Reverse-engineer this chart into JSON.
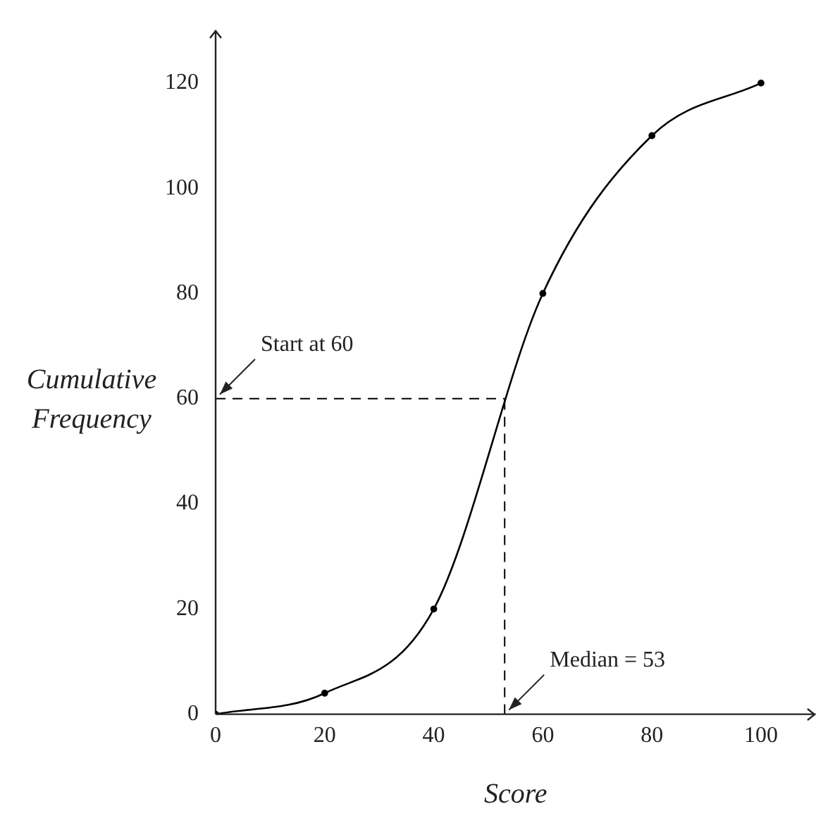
{
  "chart_data": {
    "type": "line",
    "xlabel": "Score",
    "ylabel": "Cumulative Frequency",
    "x": [
      0,
      20,
      40,
      60,
      80,
      100
    ],
    "values": [
      0,
      4,
      20,
      80,
      110,
      120
    ],
    "color": "#000000",
    "marker": "circle",
    "line_style": "solid",
    "grid": false,
    "legend": false,
    "xlim": [
      0,
      110
    ],
    "ylim": [
      0,
      130
    ],
    "xticks": [
      0,
      20,
      40,
      60,
      80,
      100
    ],
    "yticks": [
      0,
      20,
      40,
      60,
      80,
      100,
      120
    ],
    "ref_lines": [
      {
        "axis": "y",
        "value": 60,
        "line_style": "dashed",
        "color": "#000000"
      },
      {
        "axis": "x",
        "value": 53,
        "line_style": "dashed",
        "color": "#000000"
      }
    ],
    "annotations": [
      {
        "text": "Start at 60",
        "x": 0,
        "y": 60
      },
      {
        "text": "Median = 53",
        "x": 53,
        "y": 0
      }
    ]
  }
}
